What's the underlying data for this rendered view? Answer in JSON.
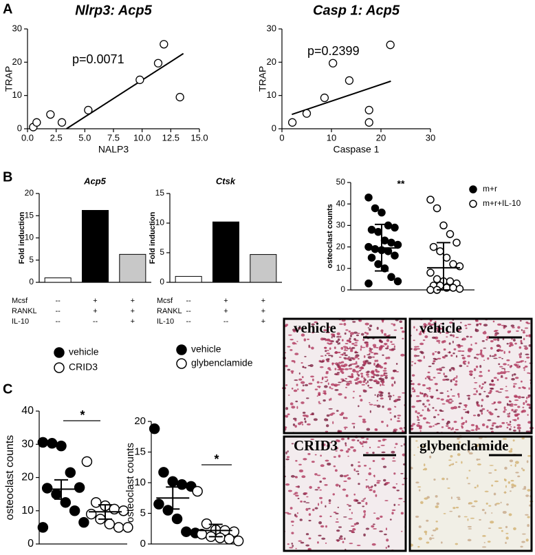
{
  "panel_labels": [
    "A",
    "B",
    "C"
  ],
  "images": [
    {
      "label": "vehicle"
    },
    {
      "label": "vehicle"
    },
    {
      "label": "CRID3"
    },
    {
      "label": "glybenclamide"
    }
  ],
  "chart_data": [
    {
      "type": "scatter",
      "title": "Nlrp3: Acp5",
      "x_label": "NALP3",
      "y_label": "TRAP",
      "annotation": "p=0.0071",
      "x": [
        0.5,
        0.8,
        2.0,
        3.0,
        5.3,
        9.8,
        11.4,
        11.9,
        13.3
      ],
      "values": [
        0.5,
        1.9,
        4.3,
        1.9,
        5.6,
        14.7,
        19.7,
        25.4,
        9.5
      ],
      "fit_line": {
        "x": [
          3.4,
          13.6
        ],
        "values": [
          0,
          22.6
        ]
      },
      "xlim": [
        0,
        15
      ],
      "xticks": [
        {
          "value": 0,
          "label": "0.0"
        },
        {
          "value": 2.5,
          "label": "2.5"
        },
        {
          "value": 5,
          "label": "5.0"
        },
        {
          "value": 7.5,
          "label": "7.5"
        },
        {
          "value": 10,
          "label": "10.0"
        },
        {
          "value": 12.5,
          "label": "12.5"
        },
        {
          "value": 15,
          "label": "15.0"
        }
      ],
      "ylim": [
        0,
        30
      ],
      "yticks": [
        0,
        10,
        20,
        30
      ]
    },
    {
      "type": "scatter",
      "title": "Casp 1: Acp5",
      "x_label": "Caspase 1",
      "y_label": "TRAP",
      "annotation": "p=0.2399",
      "x": [
        2.1,
        5.0,
        10.3,
        8.6,
        13.6,
        17.6,
        17.6,
        21.9
      ],
      "values": [
        1.9,
        4.6,
        19.7,
        9.3,
        14.5,
        5.6,
        1.9,
        25.2
      ],
      "fit_line": {
        "x": [
          2,
          22
        ],
        "values": [
          4.3,
          14.3
        ]
      },
      "xlim": [
        0,
        30
      ],
      "xticks": [
        0,
        10,
        20,
        30
      ],
      "ylim": [
        0,
        30
      ],
      "yticks": [
        0,
        10,
        20,
        30
      ]
    },
    {
      "type": "bar",
      "title": "Acp5",
      "y_label": "Fold induction",
      "categories": [
        null,
        null,
        null
      ],
      "values": [
        1,
        16.2,
        6.3
      ],
      "colors": [
        "#ffffff",
        "#000000",
        "#c8c8c8"
      ],
      "treatments": [
        {
          "label": "Mcsf",
          "cells": [
            "--",
            "+",
            "+"
          ]
        },
        {
          "label": "RANKL",
          "cells": [
            "--",
            "+",
            "+"
          ]
        },
        {
          "label": "IL-10",
          "cells": [
            "--",
            "--",
            "+"
          ]
        }
      ],
      "ylim": [
        0,
        20
      ],
      "yticks": [
        0,
        5,
        10,
        15,
        20
      ]
    },
    {
      "type": "bar",
      "title": "Ctsk",
      "y_label": "Fold induction",
      "categories": [
        null,
        null,
        null
      ],
      "values": [
        1,
        10.2,
        4.7
      ],
      "colors": [
        "#ffffff",
        "#000000",
        "#c8c8c8"
      ],
      "treatments": [
        {
          "label": "Mcsf",
          "cells": [
            "--",
            "+",
            "+"
          ]
        },
        {
          "label": "RANKL",
          "cells": [
            "--",
            "+",
            "+"
          ]
        },
        {
          "label": "IL-10",
          "cells": [
            "--",
            "--",
            "+"
          ]
        }
      ],
      "ylim": [
        0,
        15
      ],
      "yticks": [
        0,
        5,
        10,
        15
      ]
    },
    {
      "type": "dot",
      "y_label": "osteoclast counts",
      "annotation": "**",
      "series": [
        {
          "name": "m+r",
          "filled": true,
          "values": [
            43,
            38,
            36,
            30,
            29,
            28,
            27,
            23,
            22,
            21,
            20,
            19,
            18.5,
            18,
            16,
            15,
            12,
            10,
            6,
            4,
            3
          ],
          "mean": 19.5,
          "upper": 30.5,
          "lower": 8.8
        },
        {
          "name": "m+r+IL-10",
          "filled": false,
          "values": [
            42,
            38,
            30,
            26,
            22,
            20,
            18,
            15,
            12,
            11,
            8,
            5,
            4,
            4,
            3,
            2,
            2,
            1,
            1,
            0.5,
            0,
            0
          ],
          "mean": 10.3,
          "upper": 22,
          "lower": 0
        }
      ],
      "ylim": [
        0,
        50
      ],
      "yticks": [
        0,
        10,
        20,
        30,
        40,
        50
      ]
    },
    {
      "type": "dot",
      "y_label": "osteoclast counts",
      "annotation": "*",
      "series": [
        {
          "name": "vehicle",
          "filled": true,
          "values": [
            30.6,
            30.3,
            29.5,
            21.5,
            17,
            16.8,
            15,
            12.5,
            10,
            6.5,
            5
          ],
          "mean": 16.5,
          "upper": 19.3,
          "lower": 13.5
        },
        {
          "name": "CRID3",
          "filled": false,
          "values": [
            24.8,
            12.5,
            11.5,
            10.5,
            10,
            9,
            7.5,
            6,
            5,
            5
          ],
          "mean": 9.7,
          "upper": 11.8,
          "lower": 7.5
        }
      ],
      "ylim": [
        0,
        40
      ],
      "yticks": [
        0,
        10,
        20,
        30,
        40
      ]
    },
    {
      "type": "dot",
      "y_label": "osteoclast counts",
      "annotation": "*",
      "series": [
        {
          "name": "vehicle",
          "filled": true,
          "values": [
            18.8,
            11.7,
            10.2,
            9.7,
            9.4,
            6.5,
            5.5,
            4.1,
            2,
            1.8
          ],
          "mean": 7.5,
          "upper": 9.3,
          "lower": 5.7
        },
        {
          "name": "glybenclamide",
          "filled": false,
          "values": [
            8.6,
            3.3,
            2.3,
            2.2,
            2,
            1.6,
            1.2,
            1,
            0.8,
            0.5
          ],
          "mean": 2.2,
          "upper": 3.2,
          "lower": 1.2
        }
      ],
      "ylim": [
        0,
        20
      ],
      "yticks": [
        0,
        5,
        10,
        15,
        20
      ]
    }
  ]
}
